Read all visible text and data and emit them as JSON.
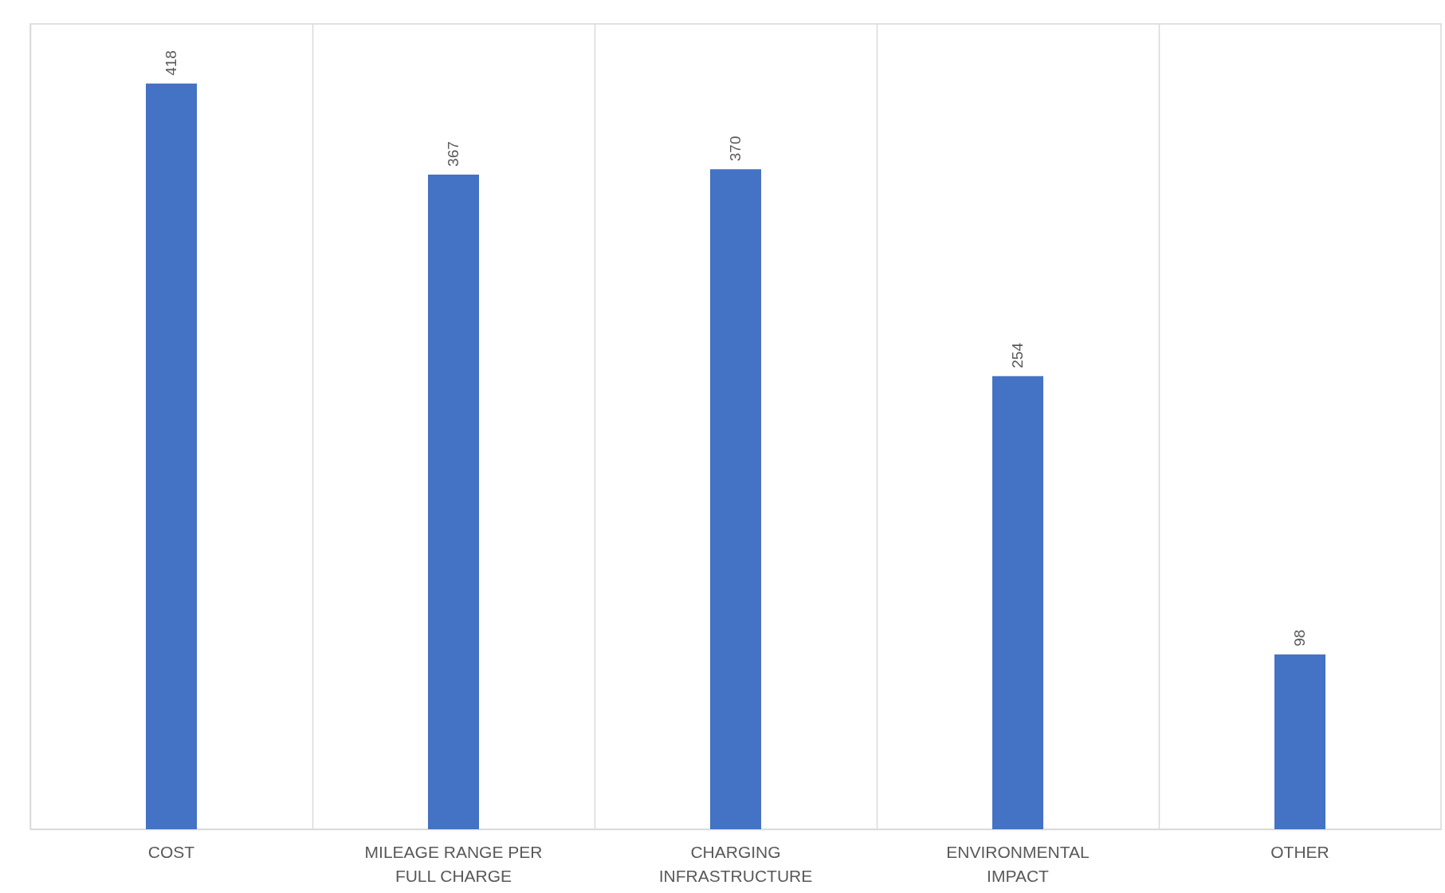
{
  "chart_data": {
    "type": "bar",
    "categories": [
      "COST",
      "MILEAGE RANGE PER FULL CHARGE",
      "CHARGING INFRASTRUCTURE",
      "ENVIRONMENTAL IMPACT",
      "OTHER"
    ],
    "values": [
      418,
      367,
      370,
      254,
      98
    ],
    "color": "#4472c4",
    "data_labels": true,
    "grid": "x"
  }
}
